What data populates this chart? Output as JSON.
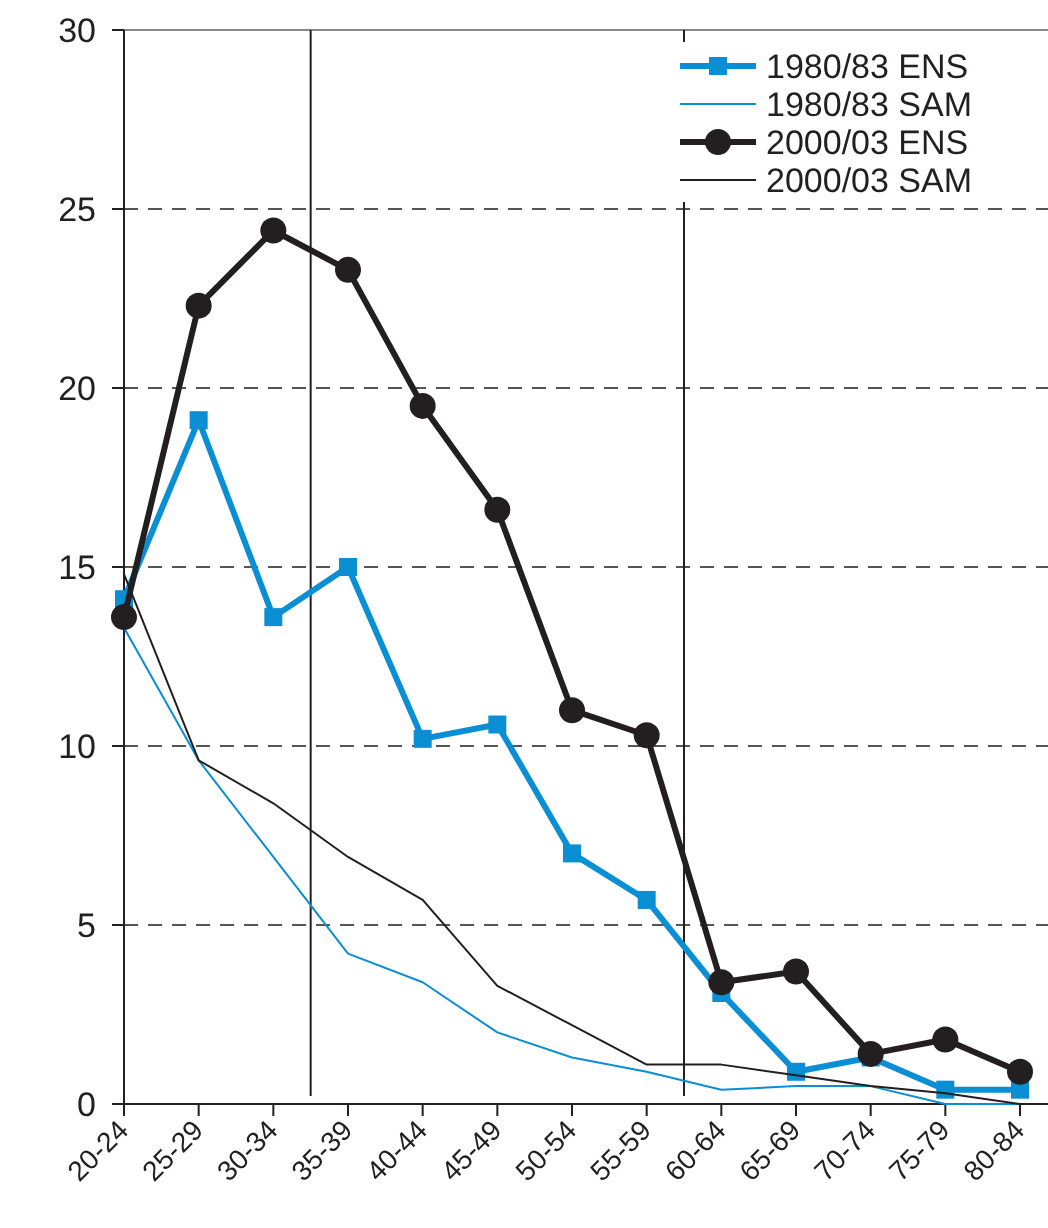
{
  "chart_data": {
    "type": "line",
    "categories": [
      "20-24",
      "25-29",
      "30-34",
      "35-39",
      "40-44",
      "45-49",
      "50-54",
      "55-59",
      "60-64",
      "65-69",
      "70-74",
      "75-79",
      "80-84"
    ],
    "series": [
      {
        "name": "1980/83 ENS",
        "color": "#0a8fd4",
        "marker": "square",
        "values": [
          14.1,
          19.1,
          13.6,
          15.0,
          10.2,
          10.6,
          7.0,
          5.7,
          3.1,
          0.9,
          1.3,
          0.4,
          0.4
        ]
      },
      {
        "name": "1980/83 SAM",
        "color": "#0a8fd4",
        "marker": "none",
        "values": [
          13.3,
          9.6,
          6.9,
          4.2,
          3.4,
          2.0,
          1.3,
          0.9,
          0.4,
          0.5,
          0.5,
          0.0,
          0.0
        ]
      },
      {
        "name": "2000/03 ENS",
        "color": "#231f20",
        "marker": "circle",
        "values": [
          13.6,
          22.3,
          24.4,
          23.3,
          19.5,
          16.6,
          11.0,
          10.3,
          3.4,
          3.7,
          1.4,
          1.8,
          0.9
        ]
      },
      {
        "name": "2000/03 SAM",
        "color": "#231f20",
        "marker": "none",
        "values": [
          14.8,
          9.6,
          8.4,
          6.9,
          5.7,
          3.3,
          2.2,
          1.1,
          1.1,
          0.8,
          0.5,
          0.3,
          0.0
        ]
      }
    ],
    "ylim": [
      0,
      30
    ],
    "yticks": [
      0,
      5,
      10,
      15,
      20,
      25,
      30
    ],
    "grid": "y",
    "legend": "top right"
  }
}
